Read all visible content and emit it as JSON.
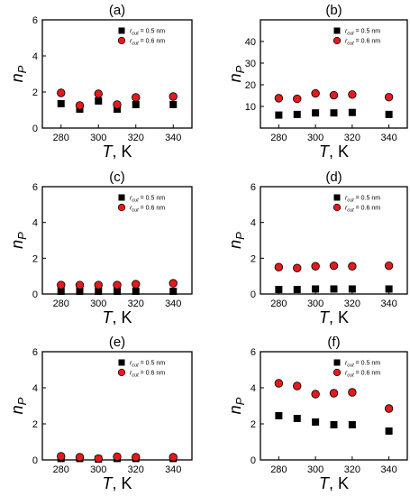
{
  "figure": {
    "legend_entries": [
      "r_cut = 0.5 nm",
      "r_cut = 0.6 nm"
    ],
    "xlabel": "T, K",
    "ylabel": "n_P"
  },
  "chart_data": [
    {
      "type": "scatter",
      "label": "(a)",
      "x": [
        280,
        290,
        300,
        310,
        320,
        340
      ],
      "xlim": [
        270,
        350
      ],
      "xticks": [
        280,
        300,
        320,
        340
      ],
      "ylim": [
        0,
        6
      ],
      "yticks": [
        0,
        2,
        4,
        6
      ],
      "xlabel": "T, K",
      "ylabel": "n_P",
      "legend": "top-right",
      "series": [
        {
          "name": "r_cut = 0.5 nm",
          "marker": "square",
          "color": "#000000",
          "values": [
            1.35,
            1.05,
            1.5,
            1.05,
            1.3,
            1.3
          ]
        },
        {
          "name": "r_cut = 0.6 nm",
          "marker": "circle",
          "color": "#e41a1c",
          "values": [
            1.95,
            1.25,
            1.9,
            1.3,
            1.7,
            1.75
          ]
        }
      ]
    },
    {
      "type": "scatter",
      "label": "(b)",
      "x": [
        280,
        290,
        300,
        310,
        320,
        340
      ],
      "xlim": [
        270,
        350
      ],
      "xticks": [
        280,
        300,
        320,
        340
      ],
      "ylim": [
        0,
        50
      ],
      "yticks": [
        10,
        20,
        30,
        40
      ],
      "xlabel": "T, K",
      "ylabel": "n_P",
      "legend": "top-right",
      "series": [
        {
          "name": "r_cut = 0.5 nm",
          "marker": "square",
          "color": "#000000",
          "values": [
            6.0,
            6.3,
            7.0,
            7.0,
            7.2,
            6.3
          ]
        },
        {
          "name": "r_cut = 0.6 nm",
          "marker": "circle",
          "color": "#e41a1c",
          "values": [
            13.8,
            13.5,
            16.0,
            15.2,
            15.5,
            14.3
          ]
        }
      ]
    },
    {
      "type": "scatter",
      "label": "(c)",
      "x": [
        280,
        290,
        300,
        310,
        320,
        340
      ],
      "xlim": [
        270,
        350
      ],
      "xticks": [
        280,
        300,
        320,
        340
      ],
      "ylim": [
        0,
        6
      ],
      "yticks": [
        0,
        2,
        4,
        6
      ],
      "xlabel": "T, K",
      "ylabel": "n_P",
      "legend": "top-right",
      "series": [
        {
          "name": "r_cut = 0.5 nm",
          "marker": "square",
          "color": "#000000",
          "values": [
            0.15,
            0.15,
            0.15,
            0.15,
            0.15,
            0.15
          ]
        },
        {
          "name": "r_cut = 0.6 nm",
          "marker": "circle",
          "color": "#e41a1c",
          "values": [
            0.5,
            0.5,
            0.5,
            0.5,
            0.55,
            0.6
          ]
        }
      ]
    },
    {
      "type": "scatter",
      "label": "(d)",
      "x": [
        280,
        290,
        300,
        310,
        320,
        340
      ],
      "xlim": [
        270,
        350
      ],
      "xticks": [
        280,
        300,
        320,
        340
      ],
      "ylim": [
        0,
        6
      ],
      "yticks": [
        0,
        2,
        4,
        6
      ],
      "xlabel": "T, K",
      "ylabel": "n_P",
      "legend": "top-right",
      "series": [
        {
          "name": "r_cut = 0.5 nm",
          "marker": "square",
          "color": "#000000",
          "values": [
            0.25,
            0.25,
            0.28,
            0.28,
            0.28,
            0.28
          ]
        },
        {
          "name": "r_cut = 0.6 nm",
          "marker": "circle",
          "color": "#e41a1c",
          "values": [
            1.5,
            1.45,
            1.55,
            1.58,
            1.55,
            1.58
          ]
        }
      ]
    },
    {
      "type": "scatter",
      "label": "(e)",
      "x": [
        280,
        290,
        300,
        310,
        320,
        340
      ],
      "xlim": [
        270,
        350
      ],
      "xticks": [
        280,
        300,
        320,
        340
      ],
      "ylim": [
        0,
        6
      ],
      "yticks": [
        0,
        2,
        4,
        6
      ],
      "xlabel": "T, K",
      "ylabel": "n_P",
      "legend": "top-right",
      "series": [
        {
          "name": "r_cut = 0.5 nm",
          "marker": "square",
          "color": "#000000",
          "values": [
            0.08,
            0.08,
            0.05,
            0.08,
            0.08,
            0.08
          ]
        },
        {
          "name": "r_cut = 0.6 nm",
          "marker": "circle",
          "color": "#e41a1c",
          "values": [
            0.2,
            0.15,
            0.08,
            0.18,
            0.15,
            0.15
          ]
        }
      ]
    },
    {
      "type": "scatter",
      "label": "(f)",
      "x": [
        280,
        290,
        300,
        310,
        320,
        340
      ],
      "xlim": [
        270,
        350
      ],
      "xticks": [
        280,
        300,
        320,
        340
      ],
      "ylim": [
        0,
        6
      ],
      "yticks": [
        0,
        2,
        4,
        6
      ],
      "xlabel": "T, K",
      "ylabel": "n_P",
      "legend": "top-right",
      "series": [
        {
          "name": "r_cut = 0.5 nm",
          "marker": "square",
          "color": "#000000",
          "values": [
            2.45,
            2.3,
            2.1,
            1.95,
            1.95,
            1.6
          ]
        },
        {
          "name": "r_cut = 0.6 nm",
          "marker": "circle",
          "color": "#e41a1c",
          "values": [
            4.25,
            4.1,
            3.65,
            3.7,
            3.75,
            2.85
          ]
        }
      ]
    }
  ]
}
